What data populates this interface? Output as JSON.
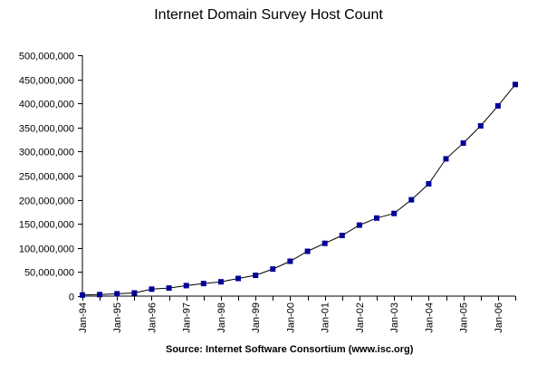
{
  "chart_data": {
    "type": "line",
    "title": "Internet Domain Survey Host Count",
    "source": "Source: Internet Software Consortium (www.isc.org)",
    "xlabel": "",
    "ylabel": "",
    "ylim": [
      0,
      500000000
    ],
    "y_ticks": [
      0,
      50000000,
      100000000,
      150000000,
      200000000,
      250000000,
      300000000,
      350000000,
      400000000,
      450000000,
      500000000
    ],
    "y_tick_labels": [
      "0",
      "50,000,000",
      "100,000,000",
      "150,000,000",
      "200,000,000",
      "250,000,000",
      "300,000,000",
      "350,000,000",
      "400,000,000",
      "450,000,000",
      "500,000,000"
    ],
    "x_tick_labels": [
      "Jan-94",
      "Jan-95",
      "Jan-96",
      "Jan-97",
      "Jan-98",
      "Jan-99",
      "Jan-00",
      "Jan-01",
      "Jan-02",
      "Jan-03",
      "Jan-04",
      "Jan-05",
      "Jan-06"
    ],
    "grid": false,
    "legend": "none",
    "marker_color": "#000099",
    "line_color": "#000000",
    "series": [
      {
        "x": [
          "Jan-94",
          "Jul-94",
          "Jan-95",
          "Jul-95",
          "Jan-96",
          "Jul-96",
          "Jan-97",
          "Jul-97",
          "Jan-98",
          "Jul-98",
          "Jan-99",
          "Jul-99",
          "Jan-00",
          "Jul-00",
          "Jan-01",
          "Jul-01",
          "Jan-02",
          "Jul-02",
          "Jan-03",
          "Jul-03",
          "Jan-04",
          "Jul-04",
          "Jan-05",
          "Jul-05",
          "Jan-06",
          "Jul-06"
        ],
        "values": [
          2200000,
          3200000,
          4900000,
          6600000,
          14400000,
          16700000,
          21800000,
          26100000,
          29700000,
          36700000,
          43200000,
          56200000,
          72400000,
          93000000,
          109600000,
          125900000,
          147300000,
          162100000,
          171600000,
          200000000,
          233000000,
          285000000,
          317600000,
          353300000,
          394900000,
          439300000
        ]
      }
    ]
  }
}
